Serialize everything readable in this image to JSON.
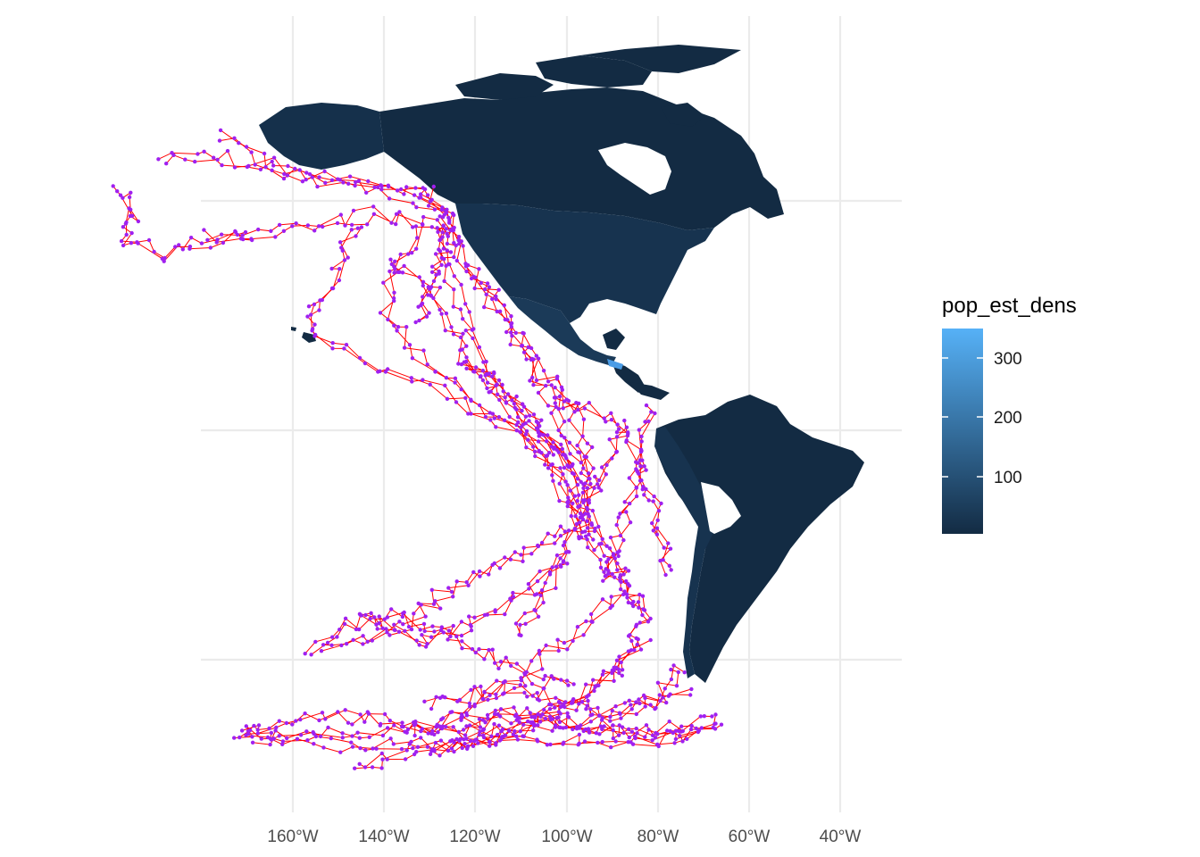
{
  "map": {
    "x_axis": {
      "ticks": [
        "160°W",
        "140°W",
        "120°W",
        "100°W",
        "80°W",
        "60°W",
        "40°W"
      ],
      "tick_values": [
        -160,
        -140,
        -120,
        -100,
        -80,
        -60,
        -40
      ]
    },
    "legend": {
      "title": "pop_est_dens",
      "ticks": [
        "100",
        "200",
        "300"
      ],
      "tick_values": [
        100,
        200,
        300
      ],
      "range": [
        5,
        350
      ],
      "color_low": "#132B43",
      "color_high": "#56B1F7"
    },
    "colors": {
      "land_dark": "#132B43",
      "land_mid": "#17334f",
      "land_canada": "#15304b",
      "land_highlight": "#4a9ce6",
      "track_line": "#ff0000",
      "track_point": "#a020f0",
      "grid": "#ebebeb"
    }
  }
}
